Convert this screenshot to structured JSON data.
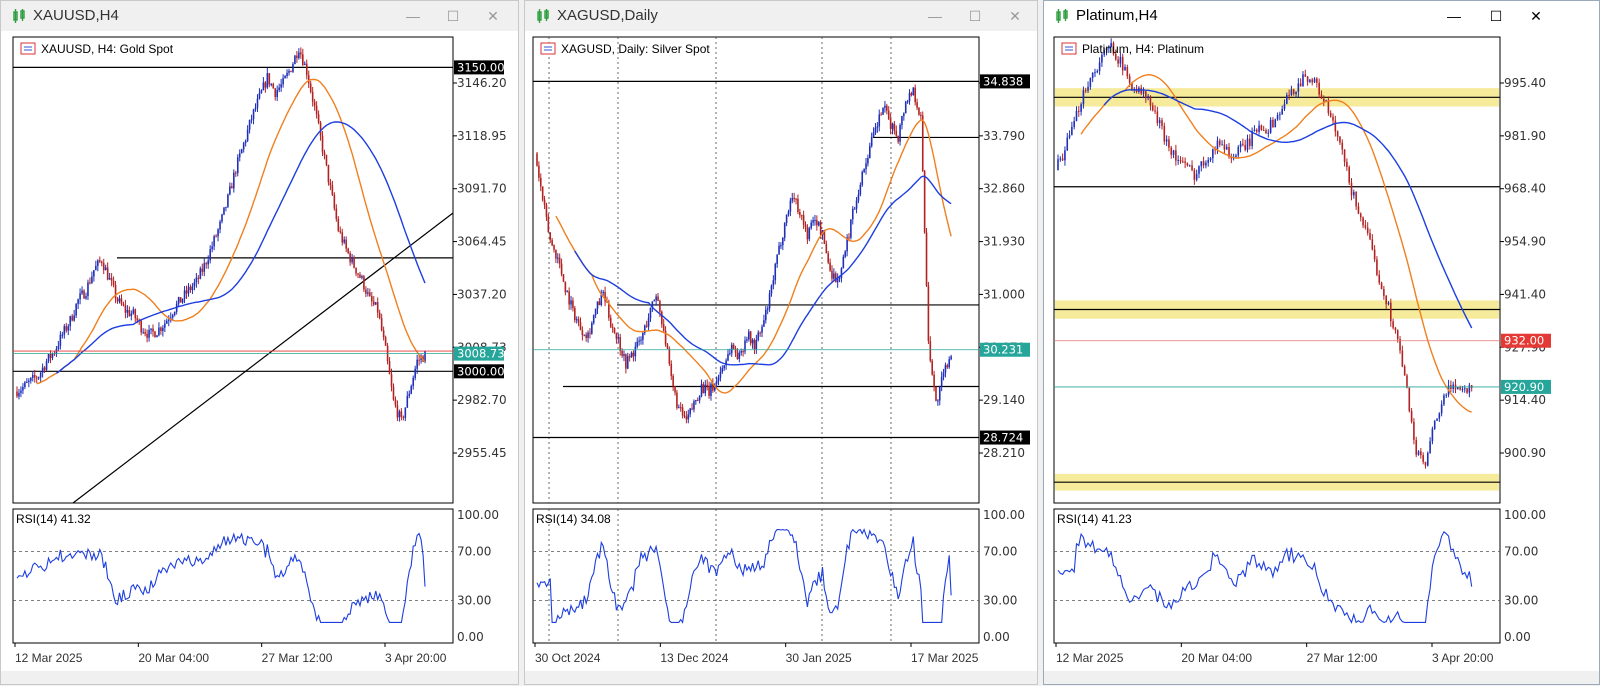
{
  "windows": [
    {
      "title": "XAUUSD,H4",
      "chart_label": "XAUUSD, H4:  Gold Spot",
      "rsi_label": "RSI(14) 41.32",
      "price_axis": [
        "3146.20",
        "3118.95",
        "3091.70",
        "3064.45",
        "3037.20",
        "3008.73",
        "2982.70",
        "2955.45"
      ],
      "price_boxes": [
        {
          "text": "3150.00",
          "color": "#000000"
        },
        {
          "text": "3008.73",
          "color": "#26a69a"
        },
        {
          "text": "3000.00",
          "color": "#000000"
        }
      ],
      "rsi_axis": [
        "100.00",
        "70.00",
        "30.00",
        "0.00"
      ],
      "time_axis": [
        "12 Mar 2025",
        "20 Mar 04:00",
        "27 Mar 12:00",
        "3 Apr 20:00"
      ]
    },
    {
      "title": "XAGUSD,Daily",
      "chart_label": "XAGUSD, Daily:  Silver Spot",
      "rsi_label": "RSI(14) 34.08",
      "price_axis": [
        "34.720",
        "33.790",
        "32.860",
        "31.930",
        "31.000",
        "30.070",
        "29.140",
        "28.210"
      ],
      "price_boxes": [
        {
          "text": "34.838",
          "color": "#000000"
        },
        {
          "text": "30.231",
          "color": "#26a69a"
        },
        {
          "text": "28.724",
          "color": "#000000"
        }
      ],
      "rsi_axis": [
        "100.00",
        "70.00",
        "30.00",
        "0.00"
      ],
      "time_axis": [
        "30 Oct 2024",
        "13 Dec 2024",
        "30 Jan 2025",
        "17 Mar 2025"
      ]
    },
    {
      "title": "Platinum,H4",
      "chart_label": "Platinum, H4:  Platinum",
      "rsi_label": "RSI(14) 41.23",
      "price_axis": [
        "995.40",
        "981.90",
        "968.40",
        "954.90",
        "941.40",
        "927.90",
        "914.40",
        "900.90"
      ],
      "price_boxes": [
        {
          "text": "932.00",
          "color": "#e53935"
        },
        {
          "text": "920.90",
          "color": "#26a69a"
        }
      ],
      "rsi_axis": [
        "100.00",
        "70.00",
        "30.00",
        "0.00"
      ],
      "time_axis": [
        "12 Mar 2025",
        "20 Mar 04:00",
        "27 Mar 12:00",
        "3 Apr 20:00"
      ]
    }
  ],
  "window_buttons": {
    "minimize": "—",
    "maximize": "☐",
    "close": "✕"
  },
  "colors": {
    "bull": "#1f2fb8",
    "bear": "#b22222",
    "ma_fast": "#f07f1e",
    "ma_slow": "#1d3ee0",
    "rsi": "#1d3ee0",
    "zone": "#f5e68a"
  },
  "chart_data": [
    {
      "type": "candlestick",
      "title": "XAUUSD, H4:  Gold Spot",
      "x": [
        "12 Mar 2025",
        "20 Mar 04:00",
        "27 Mar 12:00",
        "3 Apr 20:00"
      ],
      "ylim": [
        2935,
        3165
      ],
      "close_path": [
        2990,
        2992,
        2995,
        2998,
        3005,
        3010,
        3018,
        3025,
        3035,
        3040,
        3050,
        3055,
        3045,
        3035,
        3030,
        3028,
        3022,
        3018,
        3020,
        3024,
        3030,
        3035,
        3040,
        3044,
        3052,
        3062,
        3072,
        3085,
        3100,
        3112,
        3125,
        3135,
        3145,
        3138,
        3142,
        3150,
        3160,
        3148,
        3130,
        3110,
        3090,
        3070,
        3060,
        3052,
        3045,
        3035,
        3030,
        3010,
        2985,
        2975,
        2990,
        3005,
        3008
      ],
      "horizontal_levels": [
        3150.0,
        3000.0,
        3056.0
      ],
      "current_price": 3008.73,
      "rsi": {
        "value": 41.32,
        "levels": [
          70,
          30
        ]
      }
    },
    {
      "type": "candlestick",
      "title": "XAGUSD, Daily:  Silver Spot",
      "x": [
        "30 Oct 2024",
        "13 Dec 2024",
        "30 Jan 2025",
        "17 Mar 2025"
      ],
      "ylim": [
        27.6,
        35.6
      ],
      "close_path": [
        33.6,
        32.8,
        32.1,
        31.8,
        31.3,
        30.9,
        30.6,
        30.5,
        30.9,
        31.2,
        30.7,
        30.4,
        30.0,
        30.2,
        30.4,
        30.8,
        31.2,
        30.6,
        29.7,
        29.2,
        29.0,
        29.3,
        29.6,
        29.5,
        29.7,
        30.0,
        30.3,
        30.1,
        30.5,
        30.3,
        30.6,
        31.1,
        31.8,
        32.4,
        32.9,
        32.6,
        32.2,
        32.5,
        32.2,
        31.6,
        31.4,
        31.9,
        32.6,
        33.1,
        33.6,
        34.0,
        34.4,
        34.1,
        33.9,
        34.5,
        34.7,
        34.2,
        30.4,
        29.3,
        29.8,
        30.2
      ],
      "horizontal_levels": [
        34.838,
        33.876,
        31.0,
        29.6,
        28.724
      ],
      "current_price": 30.231,
      "rsi": {
        "value": 34.08,
        "levels": [
          70,
          30
        ]
      }
    },
    {
      "type": "candlestick",
      "title": "Platinum, H4:  Platinum",
      "x": [
        "12 Mar 2025",
        "20 Mar 04:00",
        "27 Mar 12:00",
        "3 Apr 20:00"
      ],
      "ylim": [
        893,
        1005
      ],
      "close_path": [
        973,
        978,
        984,
        992,
        996,
        1000,
        1003,
        999,
        994,
        992,
        990,
        985,
        980,
        976,
        974,
        972,
        975,
        978,
        980,
        976,
        978,
        980,
        984,
        983,
        986,
        990,
        993,
        996,
        994,
        990,
        984,
        977,
        968,
        962,
        955,
        947,
        940,
        932,
        920,
        905,
        902,
        912,
        918,
        922,
        920,
        921
      ],
      "horizontal_levels": [
        990.5,
        969.0,
        939.5,
        898.0
      ],
      "current_price": 920.9,
      "rsi": {
        "value": 41.23,
        "levels": [
          70,
          30
        ]
      }
    }
  ]
}
